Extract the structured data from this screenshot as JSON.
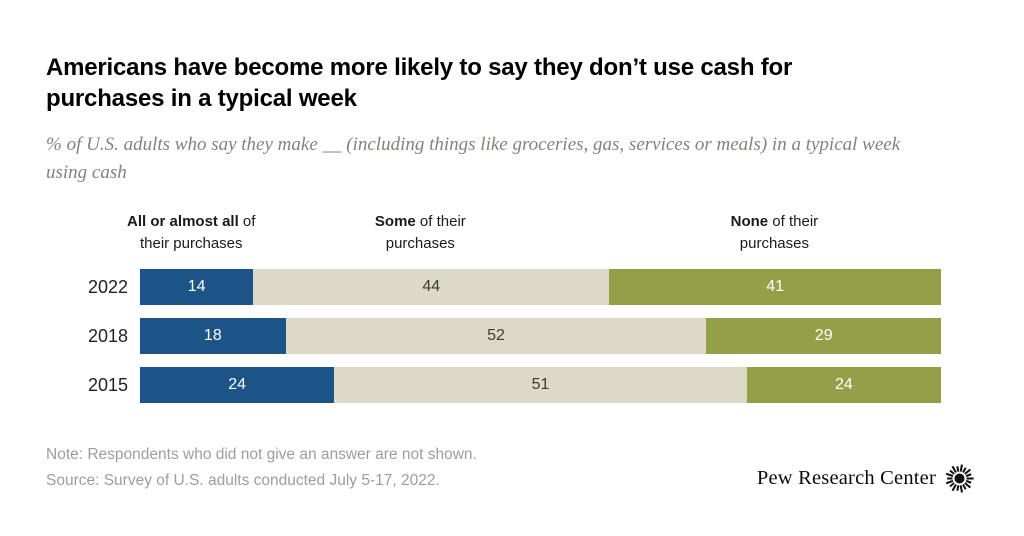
{
  "header": {
    "title": "Americans have become more likely to say they don’t use cash for purchases in a typical week",
    "subtitle": "% of U.S. adults who say they make __ (including things like groceries, gas, services or meals) in a typical week using cash"
  },
  "chart_data": {
    "type": "bar",
    "subtype": "stacked-horizontal",
    "categories": [
      "2022",
      "2018",
      "2015"
    ],
    "series": [
      {
        "name": "All or almost all of their purchases",
        "values": [
          14,
          18,
          24
        ],
        "color": "#1d5487",
        "label_color": "#ffffff"
      },
      {
        "name": "Some of their purchases",
        "values": [
          44,
          52,
          51
        ],
        "color": "#dcd9c7",
        "label_color": "#3b3b3b"
      },
      {
        "name": "None of their purchases",
        "values": [
          41,
          29,
          24
        ],
        "color": "#94a048",
        "label_color": "#ffffff"
      }
    ],
    "column_headers": [
      {
        "bold": "All or almost all",
        "rest": " of",
        "line2": "their purchases"
      },
      {
        "bold": "Some",
        "rest": " of their",
        "line2": "purchases"
      },
      {
        "bold": "None",
        "rest": " of their",
        "line2": "purchases"
      }
    ],
    "layout": {
      "header_positions_pct": [
        6.4,
        35.0,
        79.2
      ],
      "xlim": [
        0,
        99
      ],
      "grid": false,
      "value_labels": "inside",
      "legend_position": "top"
    }
  },
  "footer": {
    "note": "Note: Respondents who did not give an answer are not shown.",
    "source": "Source: Survey of U.S. adults conducted July 5-17, 2022.",
    "brand": "Pew Research Center"
  }
}
